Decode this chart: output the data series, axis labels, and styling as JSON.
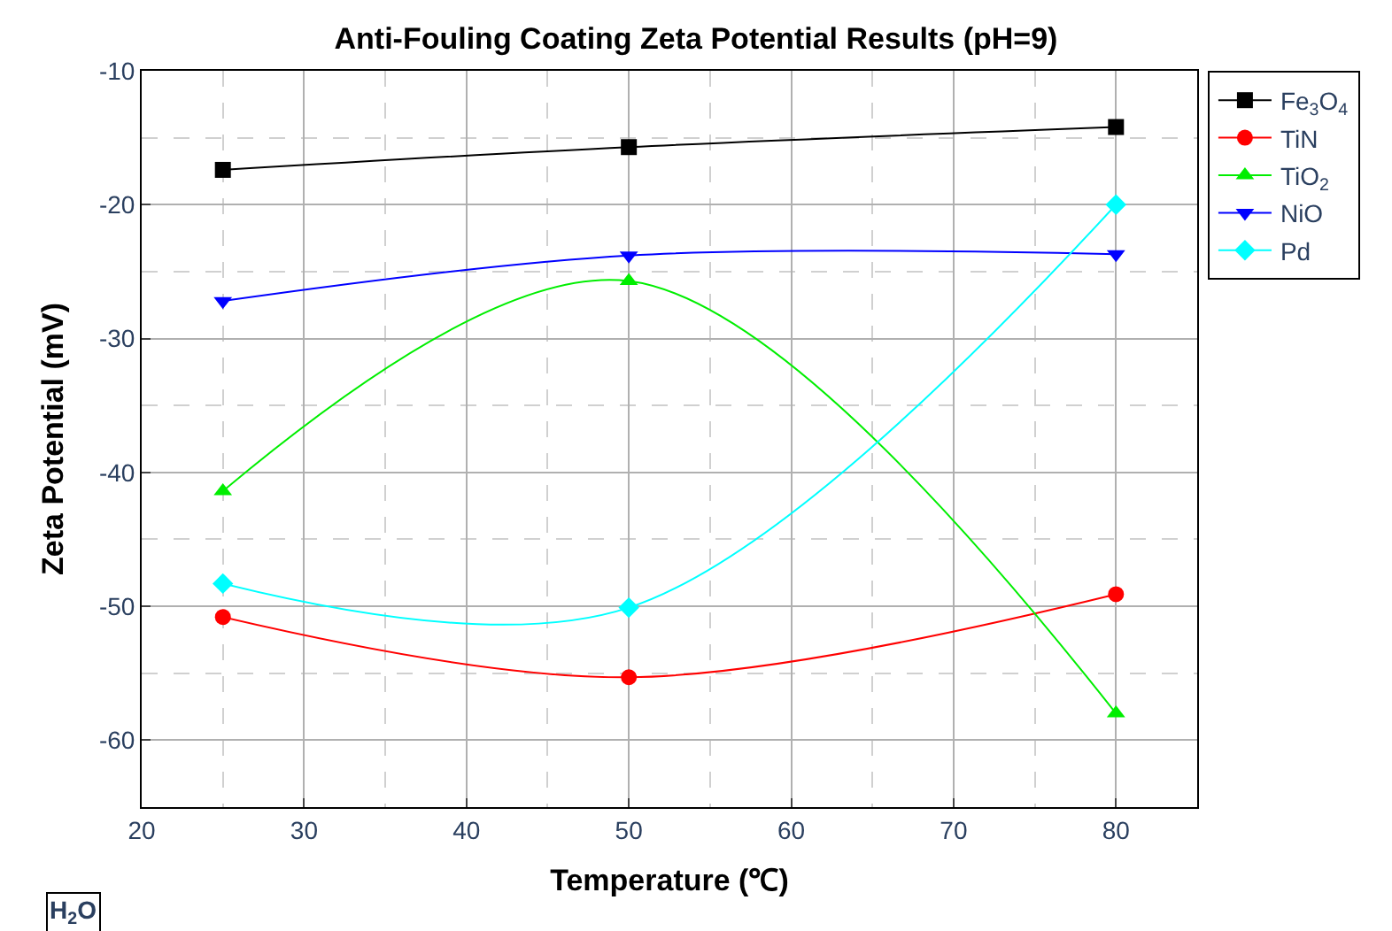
{
  "chart_data": {
    "type": "line",
    "title": "Anti-Fouling Coating Zeta Potential Results (pH=9)",
    "xlabel": "Temperature (℃)",
    "ylabel": "Zeta Potential (mV)",
    "x": [
      25,
      50,
      80
    ],
    "series": [
      {
        "name": "Fe$_{3}$O$_{4}$",
        "color": "#000000",
        "marker": "square",
        "values": [
          -17.4,
          -15.7,
          -14.2
        ]
      },
      {
        "name": "TiN",
        "color": "#ff0000",
        "marker": "circle",
        "values": [
          -50.8,
          -55.3,
          -49.1
        ]
      },
      {
        "name": "TiO$_{2}$",
        "color": "#00ee00",
        "marker": "triangle",
        "values": [
          -41.4,
          -25.7,
          -58.0
        ]
      },
      {
        "name": "NiO",
        "color": "#0000ff",
        "marker": "triangle-down",
        "values": [
          -27.2,
          -23.8,
          -23.7
        ]
      },
      {
        "name": "Pd",
        "color": "#00ffff",
        "marker": "diamond",
        "values": [
          -48.3,
          -50.1,
          -20.0
        ]
      }
    ],
    "xlim": [
      20,
      85
    ],
    "xticks": [
      20,
      30,
      40,
      50,
      60,
      70,
      80
    ],
    "ylim": [
      -65,
      -10
    ],
    "yticks": [
      -60,
      -50,
      -40,
      -30,
      -20,
      -10
    ],
    "grid": true,
    "legend": "top right",
    "annotations": [
      "H$_{2}$O"
    ]
  }
}
